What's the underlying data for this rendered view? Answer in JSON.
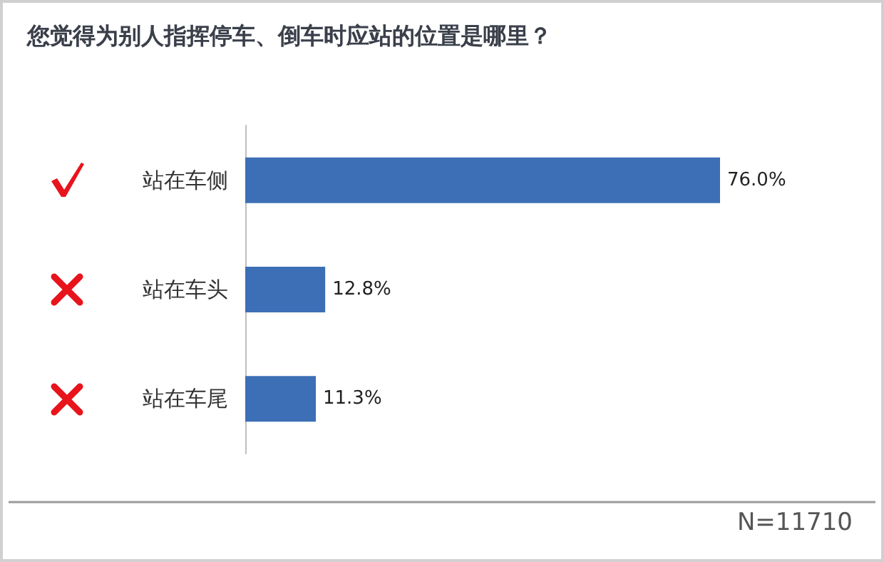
{
  "chart_data": {
    "type": "bar",
    "orientation": "horizontal",
    "title": "您觉得为别人指挥停车、倒车时应站的位置是哪里？",
    "categories": [
      "站在车侧",
      "站在车头",
      "站在车尾"
    ],
    "values": [
      76.0,
      12.8,
      11.3
    ],
    "value_labels": [
      "76.0%",
      "12.8%",
      "11.3%"
    ],
    "color": "#3d6fb6",
    "annotations": [
      "N=11710"
    ]
  }
}
